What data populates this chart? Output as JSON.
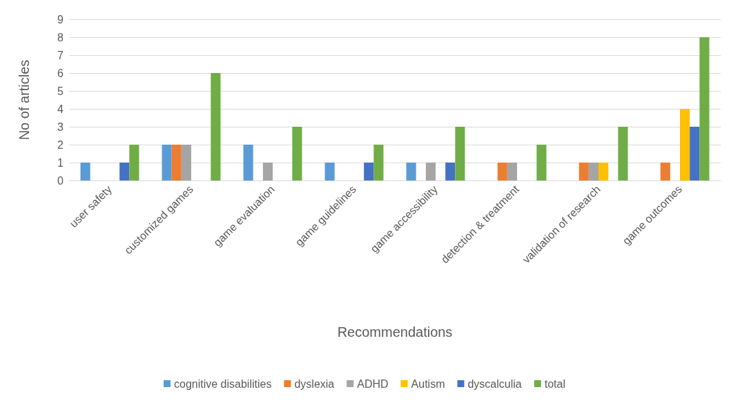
{
  "chart_data": {
    "type": "bar",
    "xlabel": "Recommendations",
    "ylabel": "No of articles",
    "categories": [
      "user safety",
      "customized games",
      "game evaluation",
      "game guidelines",
      "game accessibility",
      "detection & treatment",
      "validation of research",
      "game outcomes"
    ],
    "series": [
      {
        "name": "cognitive disabilities",
        "color": "#5b9bd5",
        "values": [
          1,
          2,
          2,
          1,
          1,
          0,
          0,
          0
        ]
      },
      {
        "name": "dyslexia",
        "color": "#ed7d31",
        "values": [
          0,
          2,
          0,
          0,
          0,
          1,
          1,
          1
        ]
      },
      {
        "name": "ADHD",
        "color": "#a5a5a5",
        "values": [
          0,
          2,
          1,
          0,
          1,
          1,
          1,
          0
        ]
      },
      {
        "name": "Autism",
        "color": "#ffc000",
        "values": [
          0,
          0,
          0,
          0,
          0,
          0,
          1,
          4
        ]
      },
      {
        "name": "dyscalculia",
        "color": "#4472c4",
        "values": [
          1,
          0,
          0,
          1,
          1,
          0,
          0,
          3
        ]
      },
      {
        "name": "total",
        "color": "#70ad47",
        "values": [
          2,
          6,
          3,
          2,
          3,
          2,
          3,
          8
        ]
      }
    ],
    "ylim": [
      0,
      9
    ],
    "yticks": [
      0,
      1,
      2,
      3,
      4,
      5,
      6,
      7,
      8,
      9
    ],
    "grid": "y",
    "legend": "bottom"
  }
}
